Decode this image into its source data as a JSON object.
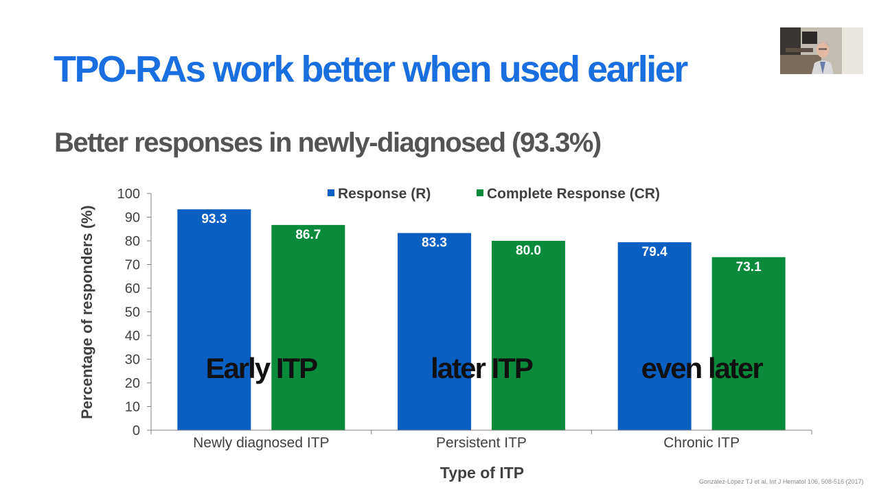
{
  "slide": {
    "title": "TPO-RAs work better when used earlier",
    "subtitle": "Better responses in newly-diagnosed (93.3%)",
    "citation": "González-López TJ et al. Int J Hematol 106, 508-516 (2017)"
  },
  "colors": {
    "title": "#1a6fe0",
    "response": "#0a60c2",
    "complete_response": "#0a8a3b",
    "axis": "#7f7f7f",
    "text": "#404040"
  },
  "chart_data": {
    "type": "bar",
    "title": "",
    "xlabel": "Type of ITP",
    "ylabel": "Percentage of responders (%)",
    "ylim": [
      0,
      100
    ],
    "yticks": [
      0,
      10,
      20,
      30,
      40,
      50,
      60,
      70,
      80,
      90,
      100
    ],
    "grid": false,
    "legend_position": "top",
    "categories": [
      "Newly diagnosed ITP",
      "Persistent ITP",
      "Chronic ITP"
    ],
    "series": [
      {
        "name": "Response (R)",
        "values": [
          93.3,
          83.3,
          79.4
        ],
        "labels": [
          "93.3",
          "83.3",
          "79.4"
        ]
      },
      {
        "name": "Complete Response (CR)",
        "values": [
          86.7,
          80.0,
          73.1
        ],
        "labels": [
          "86.7",
          "80.0",
          "73.1"
        ]
      }
    ],
    "annotations": [
      "Early ITP",
      "later ITP",
      "even later"
    ]
  }
}
